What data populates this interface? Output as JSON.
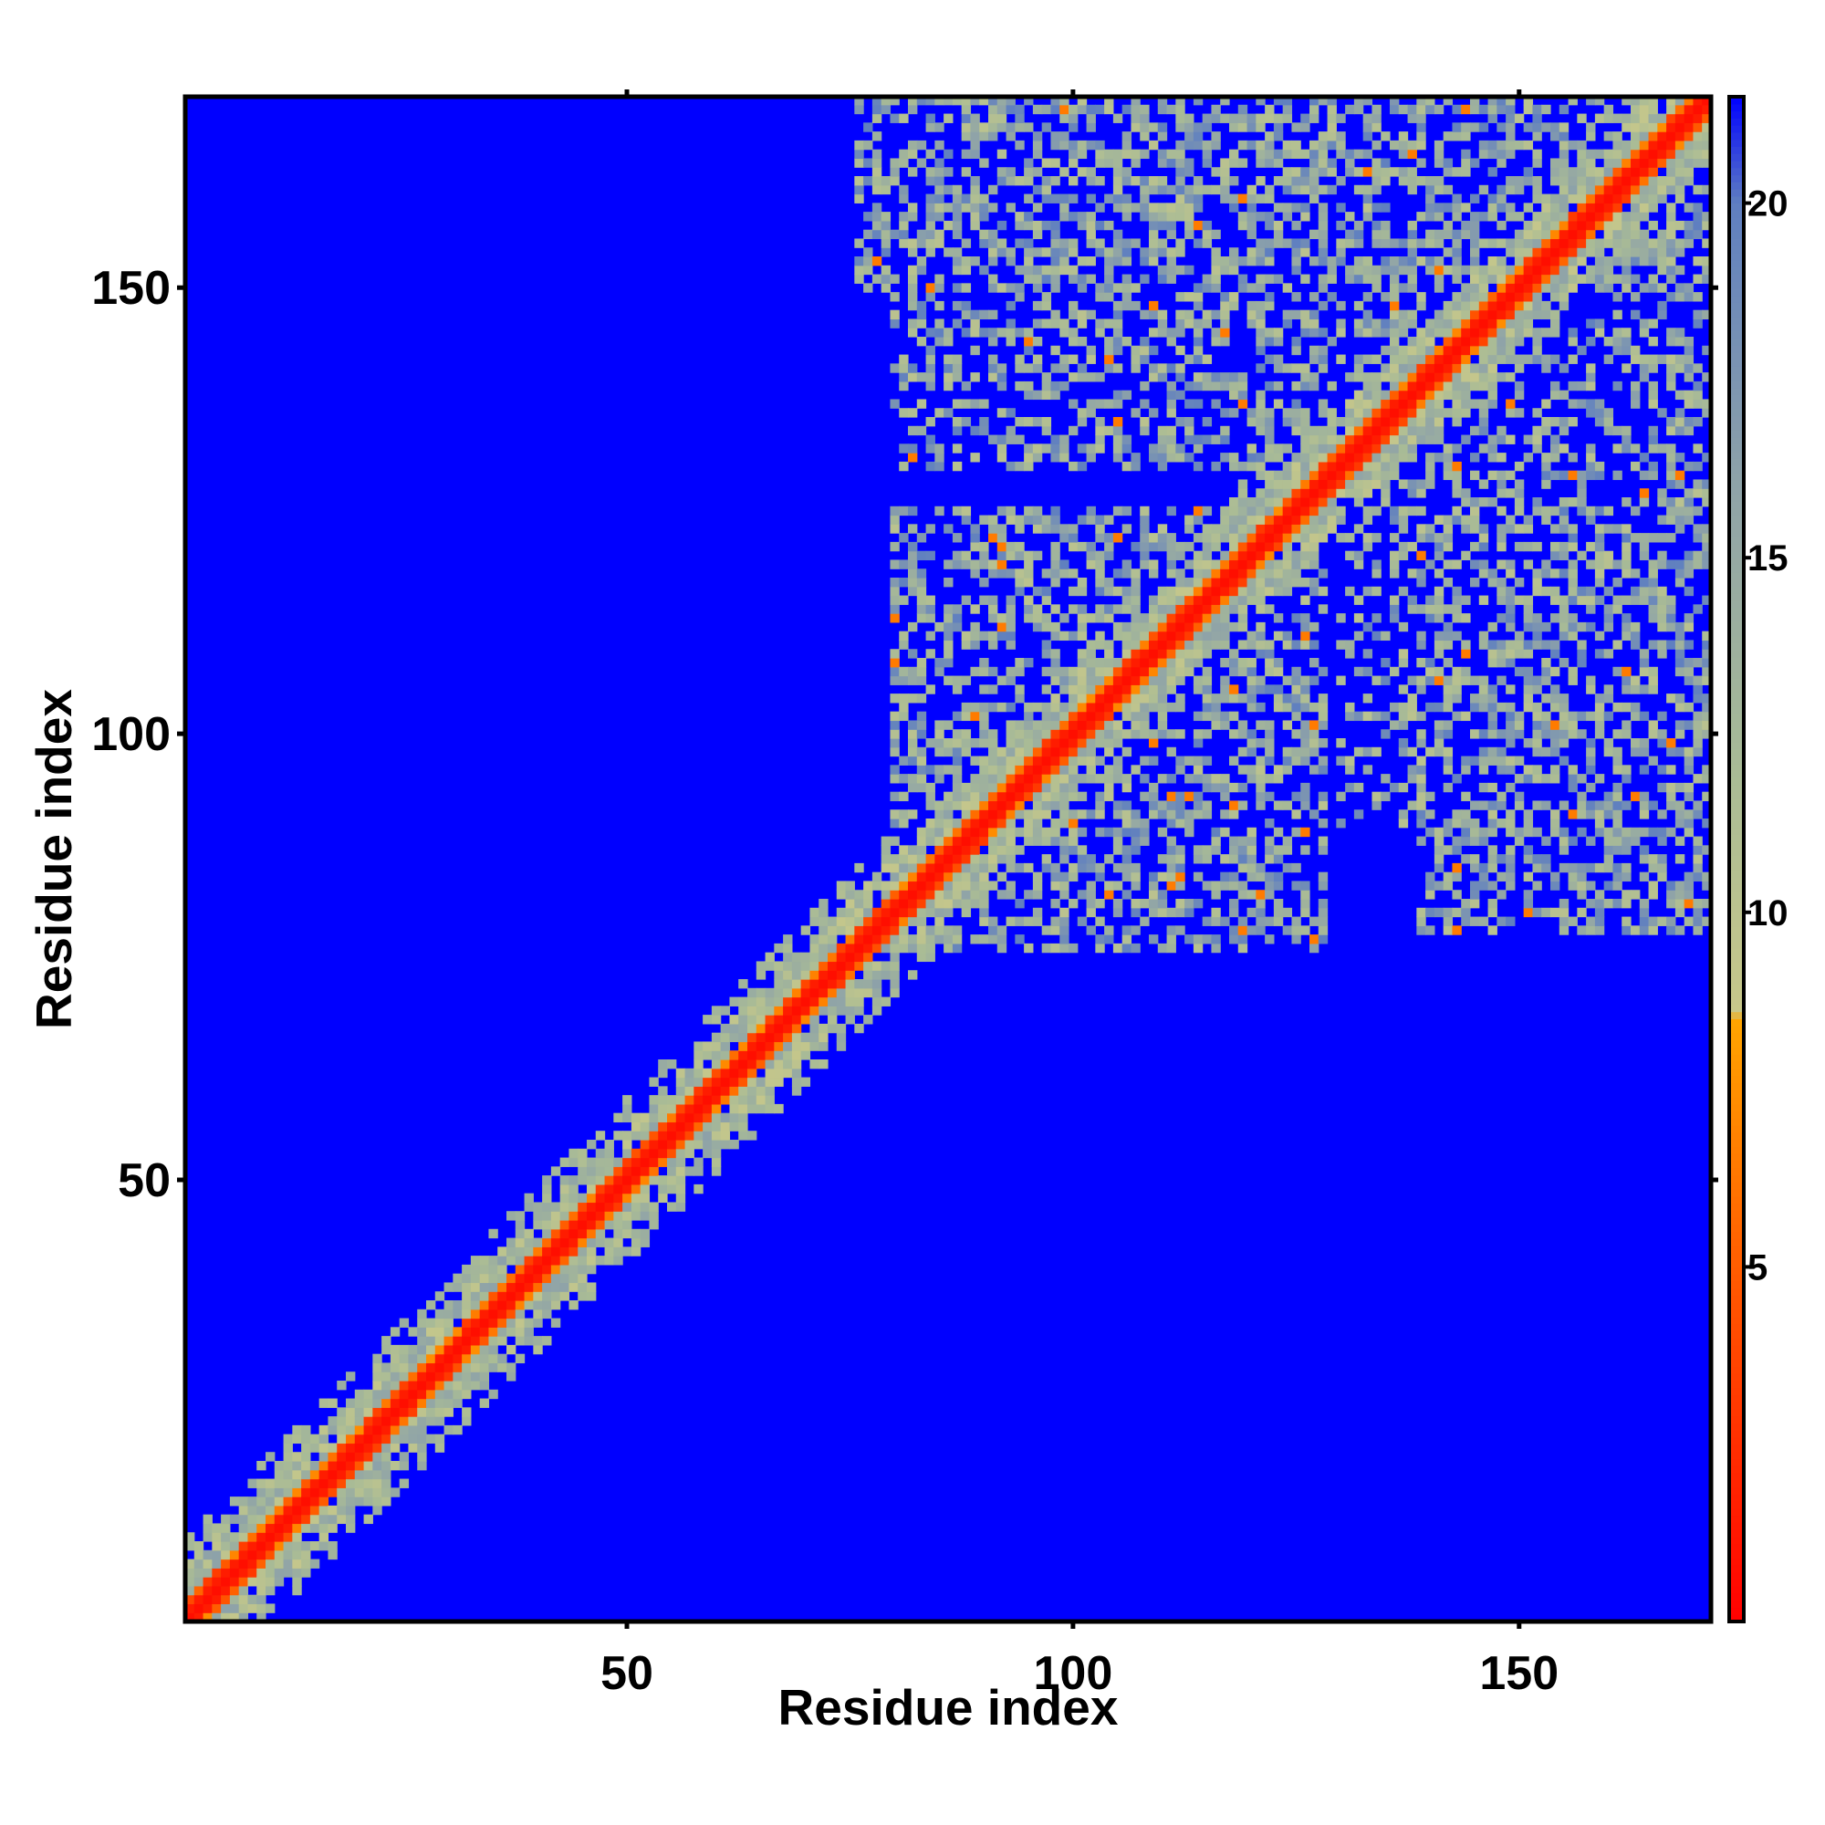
{
  "chart_data": {
    "type": "heatmap",
    "title": "",
    "xlabel": "Residue index",
    "ylabel": "Residue index",
    "xlim": [
      1,
      171
    ],
    "ylim": [
      1,
      171
    ],
    "x_ticks": [
      50,
      100,
      150
    ],
    "y_ticks": [
      50,
      100,
      150
    ],
    "x_tick_labels": [
      "50",
      "100",
      "150"
    ],
    "y_tick_labels": [
      "50",
      "100",
      "150"
    ],
    "n_residues": 171,
    "colorbar": {
      "range": [
        0,
        21.5
      ],
      "ticks": [
        5,
        10,
        15,
        20
      ],
      "tick_labels": [
        "5",
        "10",
        "15",
        "20"
      ],
      "stops": [
        {
          "value": 0,
          "color": "#ff0000"
        },
        {
          "value": 5.5,
          "color": "#ff6600"
        },
        {
          "value": 8.5,
          "color": "#ffa500"
        },
        {
          "value": 8.6,
          "color": "#c8c88a"
        },
        {
          "value": 12,
          "color": "#a9bb96"
        },
        {
          "value": 16,
          "color": "#8fa3a8"
        },
        {
          "value": 20,
          "color": "#5f7fc0"
        },
        {
          "value": 21.5,
          "color": "#0000ff"
        }
      ]
    },
    "background_value": 21.5,
    "diagonal_band": {
      "core_value": 1.5,
      "orange_halfwidth": 2,
      "greenish_halfwidth": 6
    },
    "contact_regions": [
      {
        "x": [
          76,
          171
        ],
        "y": [
          150,
          171
        ],
        "density": 0.55
      },
      {
        "x": [
          80,
          130
        ],
        "y": [
          130,
          171
        ],
        "density": 0.4
      },
      {
        "x": [
          132,
          171
        ],
        "y": [
          120,
          160
        ],
        "density": 0.45
      },
      {
        "x": [
          80,
          128
        ],
        "y": [
          76,
          125
        ],
        "density": 0.5
      },
      {
        "x": [
          139,
          171
        ],
        "y": [
          78,
          125
        ],
        "density": 0.5
      },
      {
        "x": [
          130,
          150
        ],
        "y": [
          90,
          120
        ],
        "density": 0.3
      }
    ]
  }
}
